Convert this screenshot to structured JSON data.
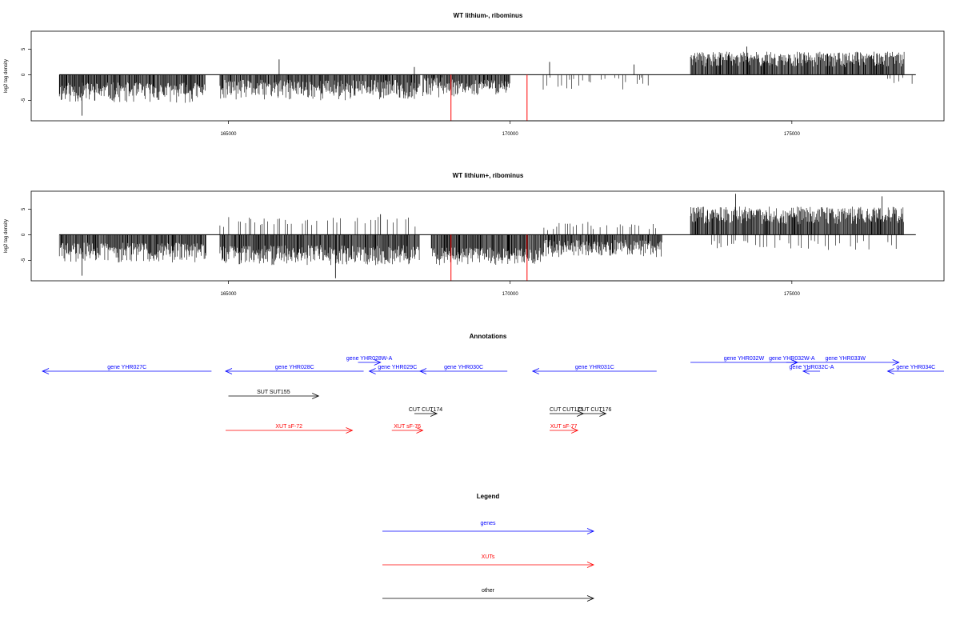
{
  "chart_data": [
    {
      "type": "bar",
      "title": "WT lithium-, ribominus",
      "ylabel": "log2 tag density",
      "xlim": [
        161500,
        177700
      ],
      "ylim": [
        -9,
        8.5
      ],
      "xticks": [
        165000,
        170000,
        175000
      ],
      "yticks": [
        5,
        0,
        -5
      ],
      "series": [
        {
          "segments": [
            {
              "x": [
                162000,
                164600
              ],
              "min": -5.5,
              "max": -1.5,
              "sign": -1
            },
            {
              "x": [
                164850,
                168400
              ],
              "min": -5,
              "max": -1,
              "sign": -1
            },
            {
              "x": [
                168450,
                169000
              ],
              "min": -4.5,
              "max": -0.5,
              "sign": -1
            },
            {
              "x": [
                169000,
                170000
              ],
              "min": -4,
              "max": -1,
              "sign": -1
            },
            {
              "x": [
                170550,
                172500
              ],
              "min": -3,
              "max": -0.5,
              "sign": -1,
              "sparse": true
            },
            {
              "x": [
                173200,
                177000
              ],
              "min": 1.5,
              "max": 4.5,
              "sign": 1
            },
            {
              "x": [
                176700,
                177200
              ],
              "min": -2,
              "max": -0.5,
              "sign": -1,
              "sparse": true
            }
          ],
          "spikes": [
            {
              "x": 162400,
              "y": -8
            },
            {
              "x": 165900,
              "y": 3
            },
            {
              "x": 168300,
              "y": 1.5
            },
            {
              "x": 170700,
              "y": 2.5
            },
            {
              "x": 172200,
              "y": 2
            },
            {
              "x": 174200,
              "y": 5.5
            },
            {
              "x": 176600,
              "y": 3.5
            }
          ],
          "highlights": [
            {
              "x": 168950,
              "y": -9,
              "color": "#ff0000"
            },
            {
              "x": 170300,
              "y": -9,
              "color": "#ff0000"
            }
          ]
        }
      ]
    },
    {
      "type": "bar",
      "title": "WT lithium+, ribominus",
      "ylabel": "log2 tag density",
      "xlim": [
        161500,
        177700
      ],
      "ylim": [
        -9,
        8.5
      ],
      "xticks": [
        165000,
        170000,
        175000
      ],
      "yticks": [
        5,
        0,
        -5
      ],
      "series": [
        {
          "segments": [
            {
              "x": [
                162000,
                164600
              ],
              "min": -5.5,
              "max": -1.5,
              "sign": -1
            },
            {
              "x": [
                164850,
                168400
              ],
              "min": -6,
              "max": -2,
              "sign": -1
            },
            {
              "x": [
                164850,
                168400
              ],
              "min": 1.5,
              "max": 3.5,
              "sign": 1,
              "sparse": true
            },
            {
              "x": [
                168600,
                170600
              ],
              "min": -6,
              "max": -2.5,
              "sign": -1
            },
            {
              "x": [
                170600,
                172700
              ],
              "min": -4.5,
              "max": -1,
              "sign": -1
            },
            {
              "x": [
                170600,
                172700
              ],
              "min": 0.5,
              "max": 2.5,
              "sign": 1,
              "sparse": true
            },
            {
              "x": [
                173200,
                177000
              ],
              "min": 2,
              "max": 5.5,
              "sign": 1
            },
            {
              "x": [
                173500,
                177000
              ],
              "min": -3,
              "max": -1,
              "sign": -1,
              "sparse": true
            }
          ],
          "spikes": [
            {
              "x": 162400,
              "y": -8
            },
            {
              "x": 166900,
              "y": -8.5
            },
            {
              "x": 167700,
              "y": 4
            },
            {
              "x": 174000,
              "y": 8
            },
            {
              "x": 176600,
              "y": 7.5
            }
          ],
          "highlights": [
            {
              "x": 168950,
              "y": -9,
              "color": "#ff0000"
            },
            {
              "x": 170300,
              "y": -9,
              "color": "#ff0000"
            }
          ]
        }
      ]
    }
  ],
  "annotations": {
    "title": "Annotations",
    "items": [
      {
        "label": "gene YHR027C",
        "x1": 164700,
        "x2": 161700,
        "track": 2,
        "color": "#0000ff"
      },
      {
        "label": "gene YHR028W-A",
        "x1": 167300,
        "x2": 167700,
        "track": 1,
        "color": "#0000ff"
      },
      {
        "label": "gene YHR028C",
        "x1": 167400,
        "x2": 164950,
        "track": 2,
        "color": "#0000ff"
      },
      {
        "label": "gene YHR029C",
        "x1": 168500,
        "x2": 167500,
        "track": 2,
        "color": "#0000ff"
      },
      {
        "label": "gene YHR030C",
        "x1": 169950,
        "x2": 168400,
        "track": 2,
        "color": "#0000ff"
      },
      {
        "label": "gene YHR031C",
        "x1": 172600,
        "x2": 170400,
        "track": 2,
        "color": "#0000ff"
      },
      {
        "label": "gene YHR032W",
        "x1": 173200,
        "x2": 175100,
        "track": 1,
        "color": "#0000ff"
      },
      {
        "label": "gene YHR032W-A",
        "x1": 174900,
        "x2": 175100,
        "track": 1,
        "color": "#0000ff"
      },
      {
        "label": "gene YHR033W",
        "x1": 175000,
        "x2": 176900,
        "track": 1,
        "color": "#0000ff"
      },
      {
        "label": "gene YHR032C-A",
        "x1": 175500,
        "x2": 175200,
        "track": 2,
        "color": "#0000ff"
      },
      {
        "label": "gene YHR034C",
        "x1": 177700,
        "x2": 176700,
        "track": 2,
        "color": "#0000ff"
      },
      {
        "label": "SUT SUT155",
        "x1": 165000,
        "x2": 166600,
        "track": 3,
        "color": "#000000"
      },
      {
        "label": "CUT CUT174",
        "x1": 168300,
        "x2": 168700,
        "track": 4,
        "color": "#000000"
      },
      {
        "label": "CUT CUT175",
        "x1": 170700,
        "x2": 171300,
        "track": 4,
        "color": "#000000"
      },
      {
        "label": "CUT CUT176",
        "x1": 171300,
        "x2": 171700,
        "track": 4,
        "color": "#000000"
      },
      {
        "label": "XUT sF-72",
        "x1": 164950,
        "x2": 167200,
        "track": 5,
        "color": "#ff0000"
      },
      {
        "label": "XUT sF-76",
        "x1": 167900,
        "x2": 168450,
        "track": 5,
        "color": "#ff0000"
      },
      {
        "label": "XUT sF-77",
        "x1": 170700,
        "x2": 171200,
        "track": 5,
        "color": "#ff0000"
      }
    ]
  },
  "legend": {
    "title": "Legend",
    "items": [
      {
        "label": "genes",
        "color": "#0000ff"
      },
      {
        "label": "XUTs",
        "color": "#ff0000"
      },
      {
        "label": "other",
        "color": "#000000"
      }
    ]
  }
}
